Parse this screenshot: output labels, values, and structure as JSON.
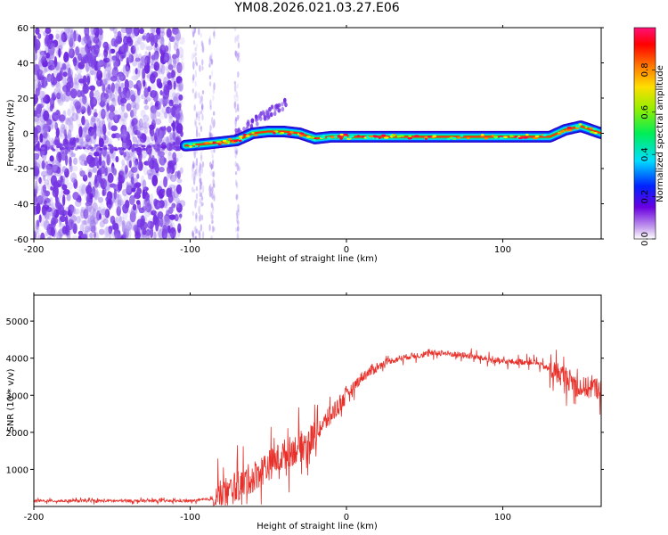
{
  "title": "YM08.2026.021.03.27.E06",
  "chart_data": [
    {
      "type": "heatmap",
      "name": "spectrogram",
      "xlabel": "Height of straight line (km)",
      "ylabel": "Frequency (Hz)",
      "xlim": [
        -200,
        163
      ],
      "ylim": [
        -60,
        60
      ],
      "xticks": [
        -200,
        -100,
        0,
        100
      ],
      "yticks": [
        -60,
        -40,
        -20,
        0,
        20,
        40,
        60
      ],
      "ytick_labels": [
        "-60",
        "-40",
        "-20",
        "0",
        "20",
        "40",
        "60"
      ],
      "colorbar": {
        "label": "Normalized spectral amplitude",
        "range": [
          0,
          1
        ],
        "ticks": [
          0.0,
          0.2,
          0.4,
          0.6,
          0.8
        ]
      },
      "ridge": [
        {
          "x": -103,
          "y": -7
        },
        {
          "x": -90,
          "y": -6
        },
        {
          "x": -80,
          "y": -5
        },
        {
          "x": -70,
          "y": -4
        },
        {
          "x": -60,
          "y": 0
        },
        {
          "x": -50,
          "y": 1
        },
        {
          "x": -40,
          "y": 1
        },
        {
          "x": -30,
          "y": 0
        },
        {
          "x": -20,
          "y": -3
        },
        {
          "x": -10,
          "y": -2
        },
        {
          "x": 0,
          "y": -2
        },
        {
          "x": 50,
          "y": -2
        },
        {
          "x": 100,
          "y": -2
        },
        {
          "x": 130,
          "y": -2
        },
        {
          "x": 140,
          "y": 2
        },
        {
          "x": 150,
          "y": 4
        },
        {
          "x": 163,
          "y": 0
        }
      ]
    },
    {
      "type": "line",
      "name": "snr",
      "xlabel": "Height of straight line (km)",
      "ylabel": "SNR (10 * v/v)",
      "xlim": [
        -200,
        163
      ],
      "ylim": [
        0,
        5700
      ],
      "xticks": [
        -200,
        -100,
        0,
        100
      ],
      "yticks": [
        1000,
        2000,
        3000,
        4000,
        5000
      ],
      "color": "#e8302a",
      "trend": [
        {
          "x": -200,
          "y": 150
        },
        {
          "x": -100,
          "y": 150
        },
        {
          "x": -85,
          "y": 200
        },
        {
          "x": -75,
          "y": 400
        },
        {
          "x": -60,
          "y": 800
        },
        {
          "x": -50,
          "y": 1100
        },
        {
          "x": -40,
          "y": 1400
        },
        {
          "x": -25,
          "y": 1700
        },
        {
          "x": -15,
          "y": 2200
        },
        {
          "x": 0,
          "y": 3000
        },
        {
          "x": 10,
          "y": 3500
        },
        {
          "x": 25,
          "y": 3900
        },
        {
          "x": 40,
          "y": 4050
        },
        {
          "x": 60,
          "y": 4150
        },
        {
          "x": 80,
          "y": 4050
        },
        {
          "x": 100,
          "y": 3900
        },
        {
          "x": 120,
          "y": 3900
        },
        {
          "x": 140,
          "y": 3500
        },
        {
          "x": 150,
          "y": 3200
        },
        {
          "x": 163,
          "y": 3200
        }
      ]
    }
  ]
}
